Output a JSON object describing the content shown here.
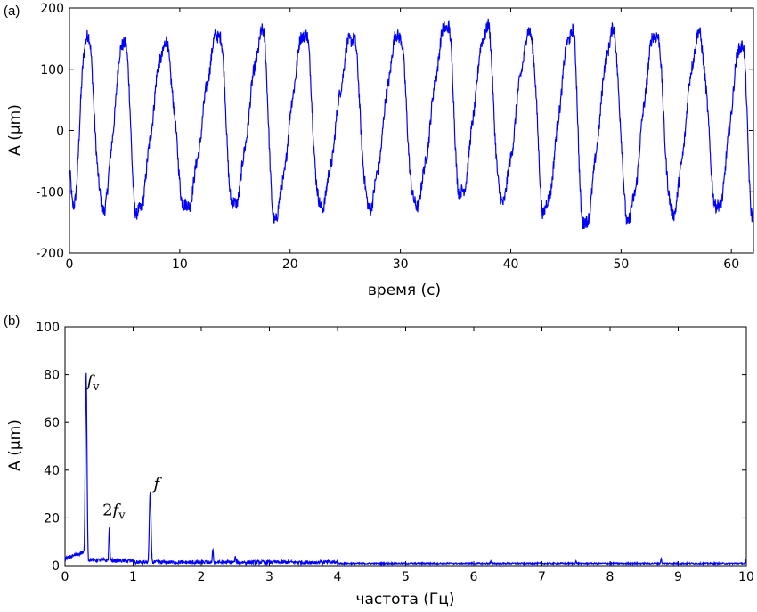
{
  "chart_data": [
    {
      "panel_label": "(a)",
      "type": "line",
      "xlabel": "время (c)",
      "ylabel": "A (μm)",
      "xlim": [
        0,
        62
      ],
      "ylim": [
        -200,
        200
      ],
      "xticks": [
        0,
        10,
        20,
        30,
        40,
        50,
        60
      ],
      "yticks": [
        -200,
        -100,
        0,
        100,
        200
      ],
      "line_color": "#0000ff",
      "signal": {
        "description_of_source": "quasi-periodic oscillation with superimposed noise",
        "period_s": 3.8,
        "peak_times_s": [
          1.6,
          5.0,
          8.7,
          13.6,
          17.6,
          21.4,
          25.7,
          29.9,
          34.3,
          37.9,
          41.8,
          45.6,
          49.3,
          53.2,
          57.1,
          61.0
        ],
        "peak_values": [
          160,
          150,
          140,
          160,
          158,
          162,
          155,
          160,
          175,
          170,
          160,
          165,
          160,
          162,
          155,
          145
        ],
        "trough_times_s": [
          0.3,
          3.0,
          6.1,
          10.5,
          14.8,
          18.5,
          22.7,
          27.1,
          31.3,
          35.4,
          39.1,
          43.0,
          46.6,
          50.6,
          54.6,
          58.7,
          61.9
        ],
        "trough_values": [
          -128,
          -128,
          -140,
          -128,
          -125,
          -143,
          -125,
          -125,
          -123,
          -108,
          -115,
          -133,
          -158,
          -145,
          -135,
          -130,
          -135
        ]
      }
    },
    {
      "panel_label": "(b)",
      "type": "line",
      "xlabel": "частота (Гц)",
      "ylabel": "A (μm)",
      "xlim": [
        0,
        10
      ],
      "ylim": [
        0,
        100
      ],
      "xticks": [
        0,
        1,
        2,
        3,
        4,
        5,
        6,
        7,
        8,
        9,
        10
      ],
      "yticks": [
        0,
        20,
        40,
        60,
        80,
        100
      ],
      "line_color": "#0000ff",
      "peaks": [
        {
          "x": 0.31,
          "y": 81
        },
        {
          "x": 0.65,
          "y": 16
        },
        {
          "x": 1.25,
          "y": 31
        },
        {
          "x": 2.17,
          "y": 7
        },
        {
          "x": 2.5,
          "y": 4
        },
        {
          "x": 3.75,
          "y": 2
        },
        {
          "x": 6.25,
          "y": 2
        },
        {
          "x": 7.5,
          "y": 2
        },
        {
          "x": 8.75,
          "y": 3
        },
        {
          "x": 10.0,
          "y": 3
        }
      ],
      "annotations": [
        {
          "text": "f",
          "sub": "v",
          "x": 0.32,
          "y": 75
        },
        {
          "text": "2",
          "text2": "f",
          "sub": "v",
          "x": 0.55,
          "y": 21
        },
        {
          "text": "f",
          "sub": "",
          "x": 1.3,
          "y": 32
        }
      ]
    }
  ]
}
